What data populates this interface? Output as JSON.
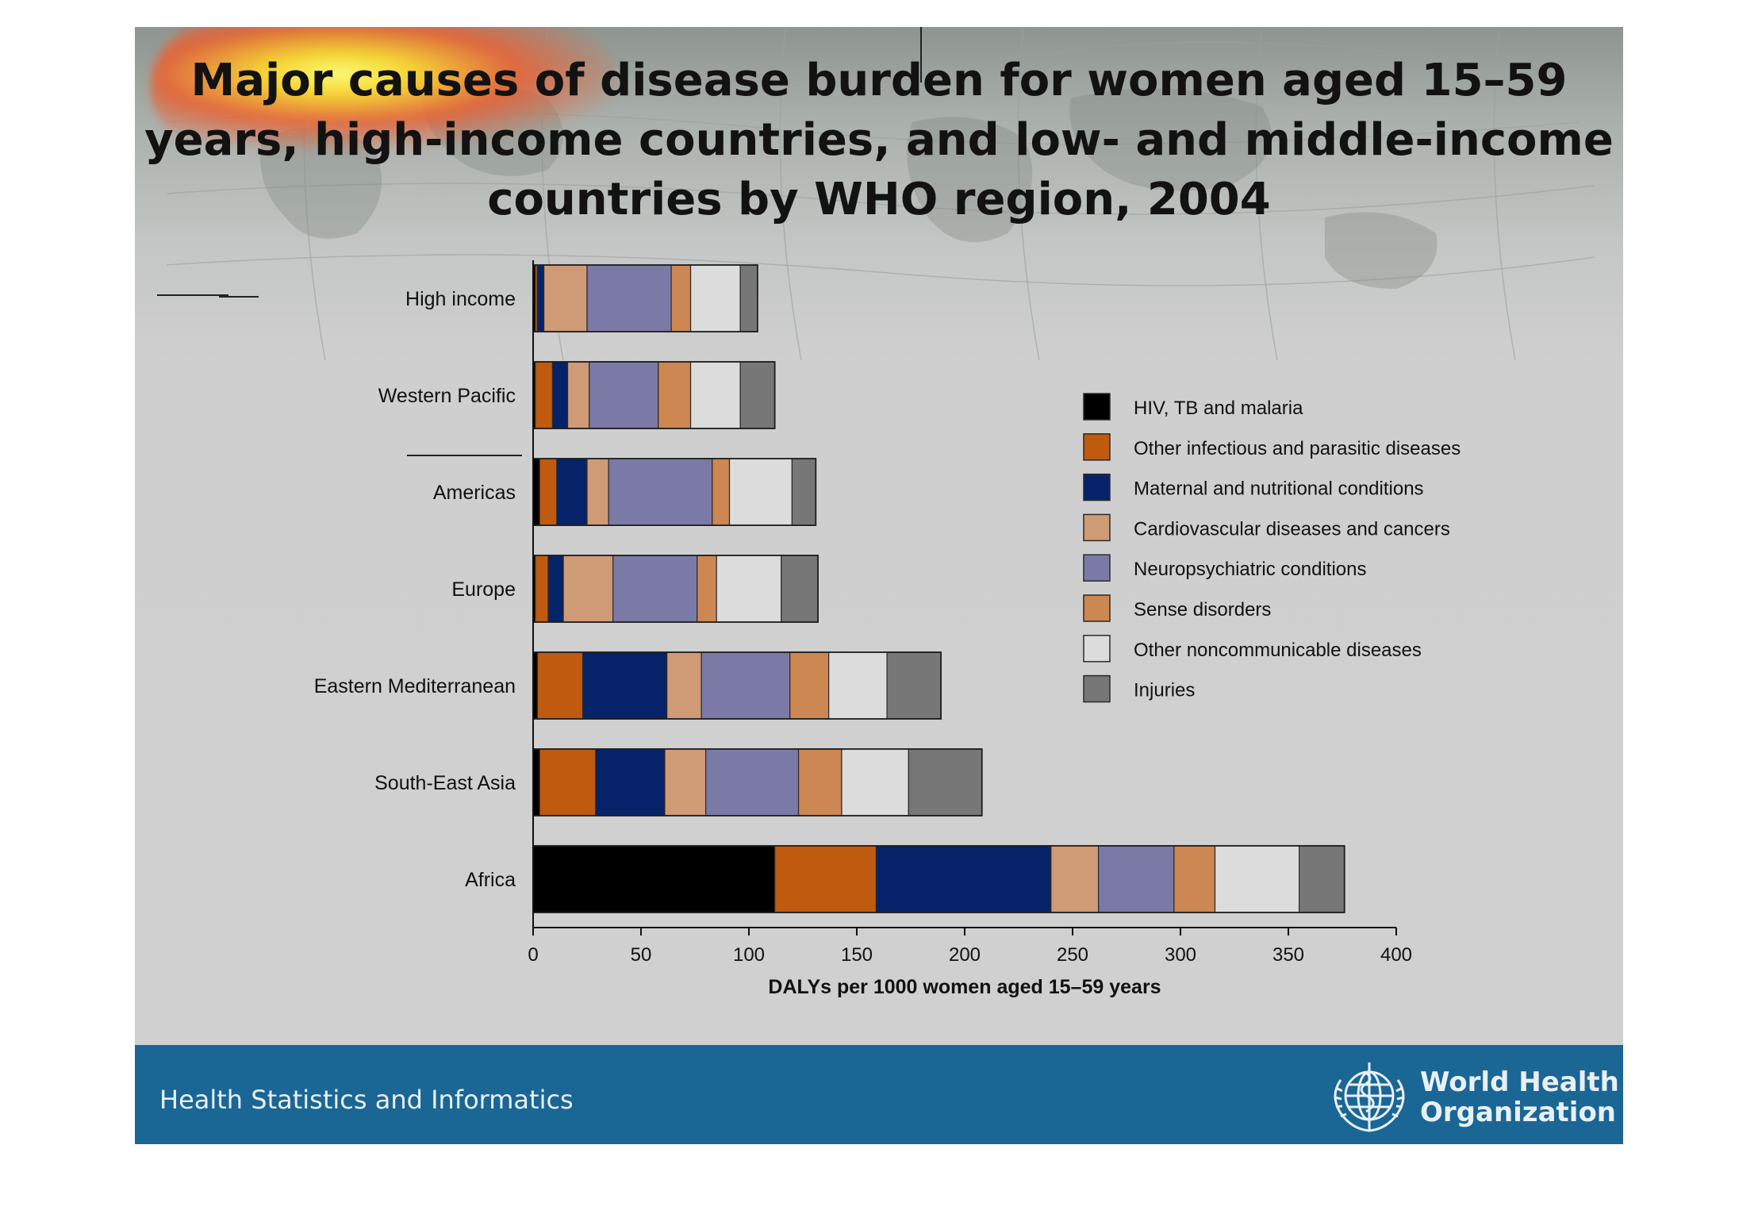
{
  "slide": {
    "title": "Major causes of disease burden for women aged 15–59 years, high-income countries, and low- and middle-income countries by WHO region, 2004",
    "footer": "Health Statistics and Informatics",
    "organization_line1": "World Health",
    "organization_line2": "Organization",
    "logo_icon": "who-emblem-icon",
    "colors": {
      "footer_bg": "#1a6695",
      "highlight": "#f5d020"
    }
  },
  "chart_data": {
    "type": "bar",
    "orientation": "horizontal",
    "stacked": true,
    "categories": [
      "High income",
      "Western Pacific",
      "Americas",
      "Europe",
      "Eastern Mediterranean",
      "South-East Asia",
      "Africa"
    ],
    "series": [
      {
        "name": "HIV, TB and malaria",
        "color": "#000000",
        "values": [
          1,
          1,
          3,
          1,
          2,
          3,
          112
        ]
      },
      {
        "name": "Other infectious and parasitic diseases",
        "color": "#bf5a0f",
        "values": [
          1,
          8,
          8,
          6,
          21,
          26,
          47
        ]
      },
      {
        "name": "Maternal and nutritional conditions",
        "color": "#06236a",
        "values": [
          3,
          7,
          14,
          7,
          39,
          32,
          81
        ]
      },
      {
        "name": "Cardiovascular diseases and cancers",
        "color": "#cf9a76",
        "values": [
          20,
          10,
          10,
          23,
          16,
          19,
          22
        ]
      },
      {
        "name": "Neuropsychiatric conditions",
        "color": "#7b7aa6",
        "values": [
          39,
          32,
          48,
          39,
          41,
          43,
          35
        ]
      },
      {
        "name": "Sense disorders",
        "color": "#cc8752",
        "values": [
          9,
          15,
          8,
          9,
          18,
          20,
          19
        ]
      },
      {
        "name": "Other noncommunicable diseases",
        "color": "#dcdcdc",
        "values": [
          23,
          23,
          29,
          30,
          27,
          31,
          39
        ]
      },
      {
        "name": "Injuries",
        "color": "#777777",
        "values": [
          8,
          16,
          11,
          17,
          25,
          34,
          21
        ]
      }
    ],
    "xlabel": "DALYs per 1000 women aged 15–59 years",
    "ylabel": "",
    "xlim": [
      0,
      400
    ],
    "xticks": [
      0,
      50,
      100,
      150,
      200,
      250,
      300,
      350,
      400
    ],
    "grid": false,
    "legend": "right"
  }
}
